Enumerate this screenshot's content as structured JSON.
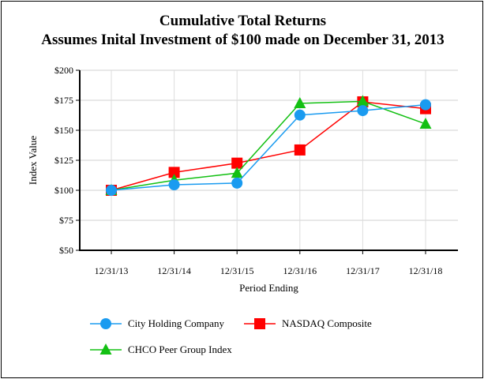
{
  "chart_data": {
    "type": "line",
    "title": "Cumulative Total Returns",
    "subtitle": "Assumes Inital Investment of $100 made on December 31, 2013",
    "xlabel": "Period Ending",
    "ylabel": "Index Value",
    "categories": [
      "12/31/13",
      "12/31/14",
      "12/31/15",
      "12/31/16",
      "12/31/17",
      "12/31/18"
    ],
    "ylim": [
      50,
      200
    ],
    "yticks": [
      50,
      75,
      100,
      125,
      150,
      175,
      200
    ],
    "ytick_labels": [
      "$50",
      "$75",
      "$100",
      "$125",
      "$150",
      "$175",
      "$200"
    ],
    "grid": true,
    "legend_position": "bottom",
    "series": [
      {
        "name": "City Holding Company",
        "color": "#1a9bf0",
        "marker": "circle",
        "values": [
          100,
          104.6,
          106.0,
          162.7,
          166.4,
          171.3
        ]
      },
      {
        "name": "NASDAQ Composite",
        "color": "#ff0000",
        "marker": "square",
        "values": [
          100,
          114.9,
          122.6,
          133.6,
          173.7,
          168.0
        ]
      },
      {
        "name": "CHCO Peer Group Index",
        "color": "#13c013",
        "marker": "triangle",
        "values": [
          100,
          108.4,
          114.3,
          172.4,
          174.1,
          155.3
        ]
      }
    ]
  }
}
